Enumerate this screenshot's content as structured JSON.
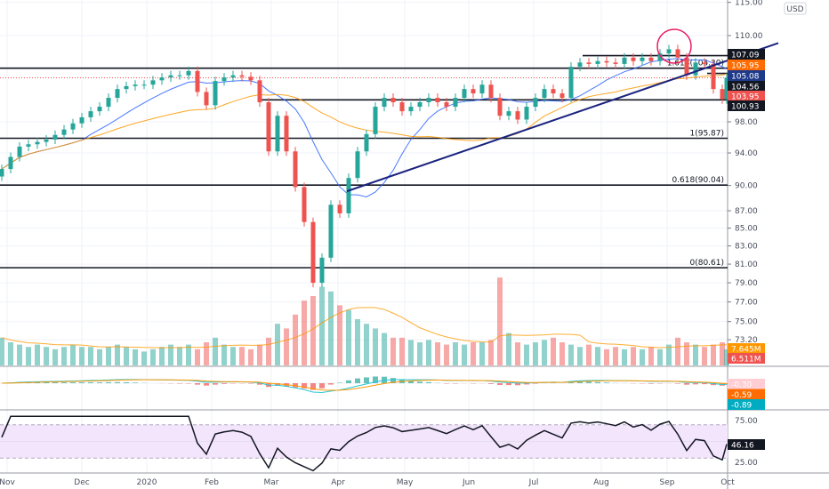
{
  "chart_data": {
    "type": "candlestick",
    "currency_badge": "USD",
    "y_scale": "log",
    "price_ticks": [
      "115.00",
      "110.00",
      "98.00",
      "94.00",
      "90.00",
      "87.00",
      "85.00",
      "83.00",
      "81.00",
      "79.00",
      "77.00",
      "75.00",
      "73.20"
    ],
    "x_tick_labels": [
      "Nov",
      "Dec",
      "2020",
      "Feb",
      "Mar",
      "Apr",
      "May",
      "Jun",
      "Jul",
      "Aug",
      "Sep",
      "Oct"
    ],
    "closes": [
      92.0,
      93.5,
      94.8,
      95.1,
      95.4,
      95.7,
      96.3,
      97.0,
      97.8,
      98.6,
      99.4,
      100.0,
      101.2,
      102.4,
      102.8,
      103.0,
      103.0,
      103.6,
      104.0,
      104.3,
      104.3,
      104.9,
      102.0,
      100.2,
      103.5,
      104.0,
      104.3,
      104.1,
      103.6,
      100.6,
      94.2,
      98.8,
      94.2,
      89.8,
      85.7,
      79.0,
      81.7,
      87.7,
      86.7,
      90.9,
      94.2,
      96.4,
      100.0,
      101.2,
      100.6,
      99.4,
      100.0,
      100.6,
      101.2,
      100.6,
      100.0,
      101.2,
      102.4,
      101.8,
      103.0,
      101.2,
      98.8,
      99.4,
      98.3,
      100.0,
      101.2,
      102.4,
      101.8,
      101.2,
      105.5,
      106.1,
      105.9,
      106.3,
      106.1,
      105.9,
      106.8,
      106.3,
      106.8,
      106.3,
      107.4,
      108.0,
      106.8,
      104.3,
      106.1,
      105.9,
      102.4,
      101.0,
      103.95
    ],
    "volumes_millions": [
      12,
      10,
      9,
      8,
      9,
      8,
      7,
      8,
      9,
      8,
      8,
      7,
      8,
      9,
      8,
      7,
      6,
      7,
      8,
      9,
      8,
      9,
      7,
      10,
      12,
      9,
      8,
      8,
      7,
      9,
      12,
      18,
      16,
      22,
      28,
      30,
      34,
      32,
      26,
      24,
      20,
      18,
      16,
      14,
      12,
      12,
      11,
      10,
      11,
      10,
      9,
      10,
      9,
      10,
      10,
      11,
      38,
      14,
      10,
      9,
      10,
      11,
      12,
      10,
      9,
      8,
      9,
      8,
      7,
      8,
      7,
      8,
      7,
      8,
      7,
      9,
      12,
      10,
      9,
      8,
      9,
      10,
      7
    ],
    "moving_averages": [
      {
        "period_days": 20,
        "color": "#2962ff",
        "last": "105.08"
      },
      {
        "period_days": 50,
        "color": "#ff9800",
        "last": "105.95"
      }
    ],
    "levels": [
      {
        "price": 107.09,
        "label": "",
        "tag": "107.09"
      },
      {
        "price": 105.3,
        "label": "1.618(105.30)",
        "tag": ""
      },
      {
        "price": 104.56,
        "label": "",
        "tag": "104.56"
      },
      {
        "price": 100.93,
        "label": "",
        "tag": "100.93"
      },
      {
        "price": 95.87,
        "label": "1(95.87)",
        "tag": ""
      },
      {
        "price": 90.04,
        "label": "0.618(90.04)",
        "tag": ""
      },
      {
        "price": 80.61,
        "label": "0(80.61)",
        "tag": ""
      }
    ],
    "price_tags": {
      "ma50": {
        "text": "105.95",
        "color": "#ff6d00"
      },
      "ma20": {
        "text": "105.08",
        "color": "#1e3a8a"
      },
      "last": {
        "text": "103.95",
        "color": "#ef5350"
      }
    },
    "trendline": {
      "from_price": 89.3,
      "to_price": 108.9,
      "color": "#1a237e"
    },
    "annotation_circle_color": "#e91e63",
    "volume_tags": [
      {
        "text": "7.645M",
        "color": "#ff9800"
      },
      {
        "text": "6.511M",
        "color": "#ef5350"
      }
    ],
    "macd_tags": [
      {
        "text": "-0.30",
        "color": "#ffcdd2",
        "fg": "#131722"
      },
      {
        "text": "-0.59",
        "color": "#ff6d00",
        "fg": "#fff"
      },
      {
        "text": "-0.89",
        "color": "#00acc1",
        "fg": "#fff"
      }
    ],
    "rsi": {
      "ticks": [
        "75.00",
        "25.00"
      ],
      "last": "46.16",
      "band": [
        30,
        70
      ]
    },
    "colors": {
      "up": "#26a69a",
      "down": "#ef5350",
      "rsi_band": "#f3e5fb"
    }
  }
}
